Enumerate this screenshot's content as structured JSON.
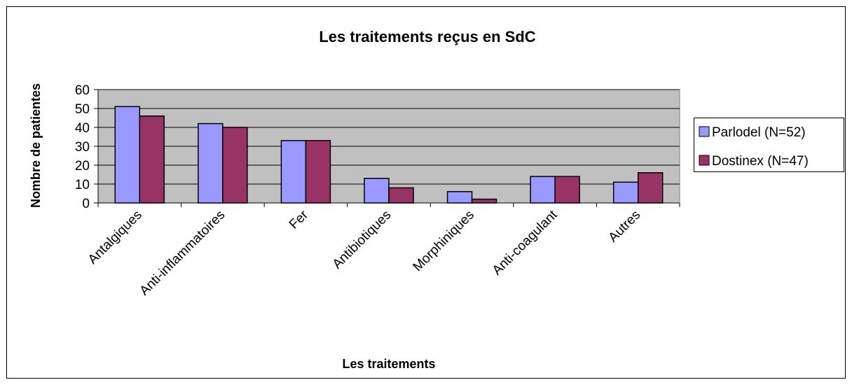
{
  "chart_data": {
    "type": "bar",
    "title": "Les traitements reçus en SdC",
    "x_label": "Les traitements",
    "y_label": "Nombre de patientes",
    "categories": [
      "Antalgiques",
      "Anti-inflammatoires",
      "Fer",
      "Antibiotiques",
      "Morphiniques",
      "Anti-coagulant",
      "Autres"
    ],
    "series": [
      {
        "name": "Parlodel (N=52)",
        "color": "#9999ff",
        "values": [
          51,
          42,
          33,
          13,
          6,
          14,
          11
        ]
      },
      {
        "name": "Dostinex (N=47)",
        "color": "#993366",
        "values": [
          46,
          40,
          33,
          8,
          2,
          14,
          16
        ]
      }
    ],
    "ylim": [
      0,
      60
    ],
    "yticks": [
      0,
      10,
      20,
      30,
      40,
      50,
      60
    ],
    "grid": true,
    "legend": "right"
  }
}
